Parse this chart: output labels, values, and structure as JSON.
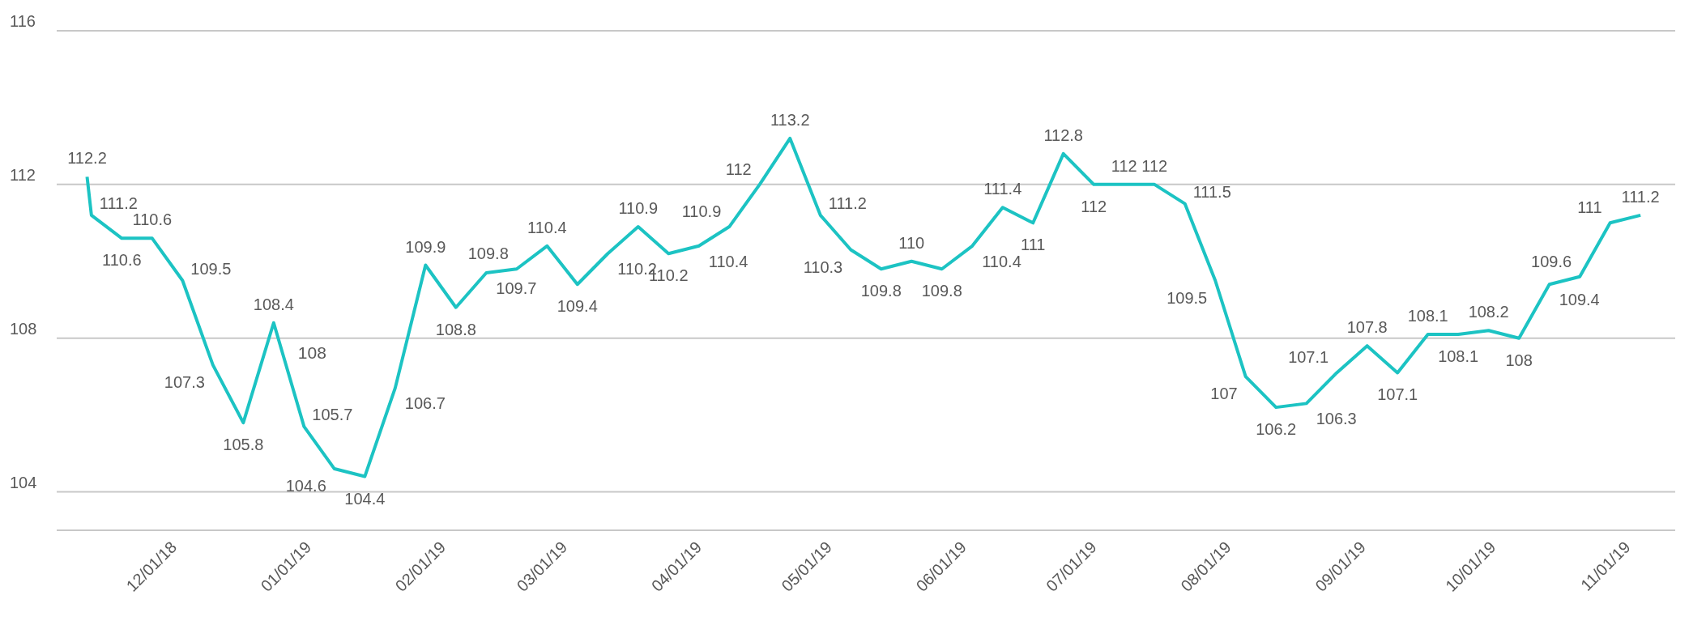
{
  "chart_data": {
    "type": "line",
    "x": [
      "2018-11-12",
      "2018-11-13",
      "2018-11-20",
      "2018-11-27",
      "2018-12-04",
      "2018-12-11",
      "2018-12-18",
      "2018-12-25",
      "2019-01-01",
      "2019-01-08",
      "2019-01-15",
      "2019-01-22",
      "2019-01-29",
      "2019-02-05",
      "2019-02-12",
      "2019-02-19",
      "2019-02-26",
      "2019-03-05",
      "2019-03-12",
      "2019-03-19",
      "2019-03-26",
      "2019-04-02",
      "2019-04-09",
      "2019-04-16",
      "2019-04-23",
      "2019-04-30",
      "2019-05-07",
      "2019-05-14",
      "2019-05-21",
      "2019-05-28",
      "2019-06-04",
      "2019-06-11",
      "2019-06-18",
      "2019-06-25",
      "2019-07-02",
      "2019-07-09",
      "2019-07-16",
      "2019-07-23",
      "2019-07-30",
      "2019-08-06",
      "2019-08-13",
      "2019-08-20",
      "2019-08-27",
      "2019-09-03",
      "2019-09-10",
      "2019-09-17",
      "2019-09-24",
      "2019-10-01",
      "2019-10-08",
      "2019-10-15",
      "2019-10-22",
      "2019-10-29",
      "2019-11-05"
    ],
    "series": [
      {
        "color": "#1cc3c3",
        "values": [
          112.2,
          111.2,
          110.6,
          110.6,
          109.5,
          107.3,
          105.8,
          108.4,
          105.7,
          104.6,
          104.4,
          106.7,
          109.9,
          108.8,
          109.7,
          109.8,
          110.4,
          109.4,
          110.2,
          110.9,
          110.2,
          110.4,
          110.9,
          112,
          113.2,
          111.2,
          110.3,
          109.8,
          110,
          109.8,
          110.4,
          111.4,
          111,
          112.8,
          112,
          112,
          112,
          111.5,
          109.5,
          107,
          106.2,
          106.3,
          107.1,
          107.8,
          107.1,
          108.1,
          108.1,
          108.2,
          108,
          109.4,
          109.6,
          111,
          111.2
        ]
      }
    ],
    "xlim": [
      "2018-11-05",
      "2019-11-13"
    ],
    "xticks": [
      {
        "value": "2018-12-01",
        "label": "12/01/18"
      },
      {
        "value": "2019-01-01",
        "label": "01/01/19"
      },
      {
        "value": "2019-02-01",
        "label": "02/01/19"
      },
      {
        "value": "2019-03-01",
        "label": "03/01/19"
      },
      {
        "value": "2019-04-01",
        "label": "04/01/19"
      },
      {
        "value": "2019-05-01",
        "label": "05/01/19"
      },
      {
        "value": "2019-06-01",
        "label": "06/01/19"
      },
      {
        "value": "2019-07-01",
        "label": "07/01/19"
      },
      {
        "value": "2019-08-01",
        "label": "08/01/19"
      },
      {
        "value": "2019-09-01",
        "label": "09/01/19"
      },
      {
        "value": "2019-10-01",
        "label": "10/01/19"
      },
      {
        "value": "2019-11-01",
        "label": "11/01/19"
      }
    ],
    "ylim": [
      103,
      116
    ],
    "yticks": [
      104,
      108,
      112,
      116
    ],
    "grid": "y",
    "marker": "none",
    "line_style": "solid",
    "data_labels": true,
    "annotations": [
      {
        "text": "108",
        "x": "2018-12-25",
        "y": 108
      }
    ]
  }
}
